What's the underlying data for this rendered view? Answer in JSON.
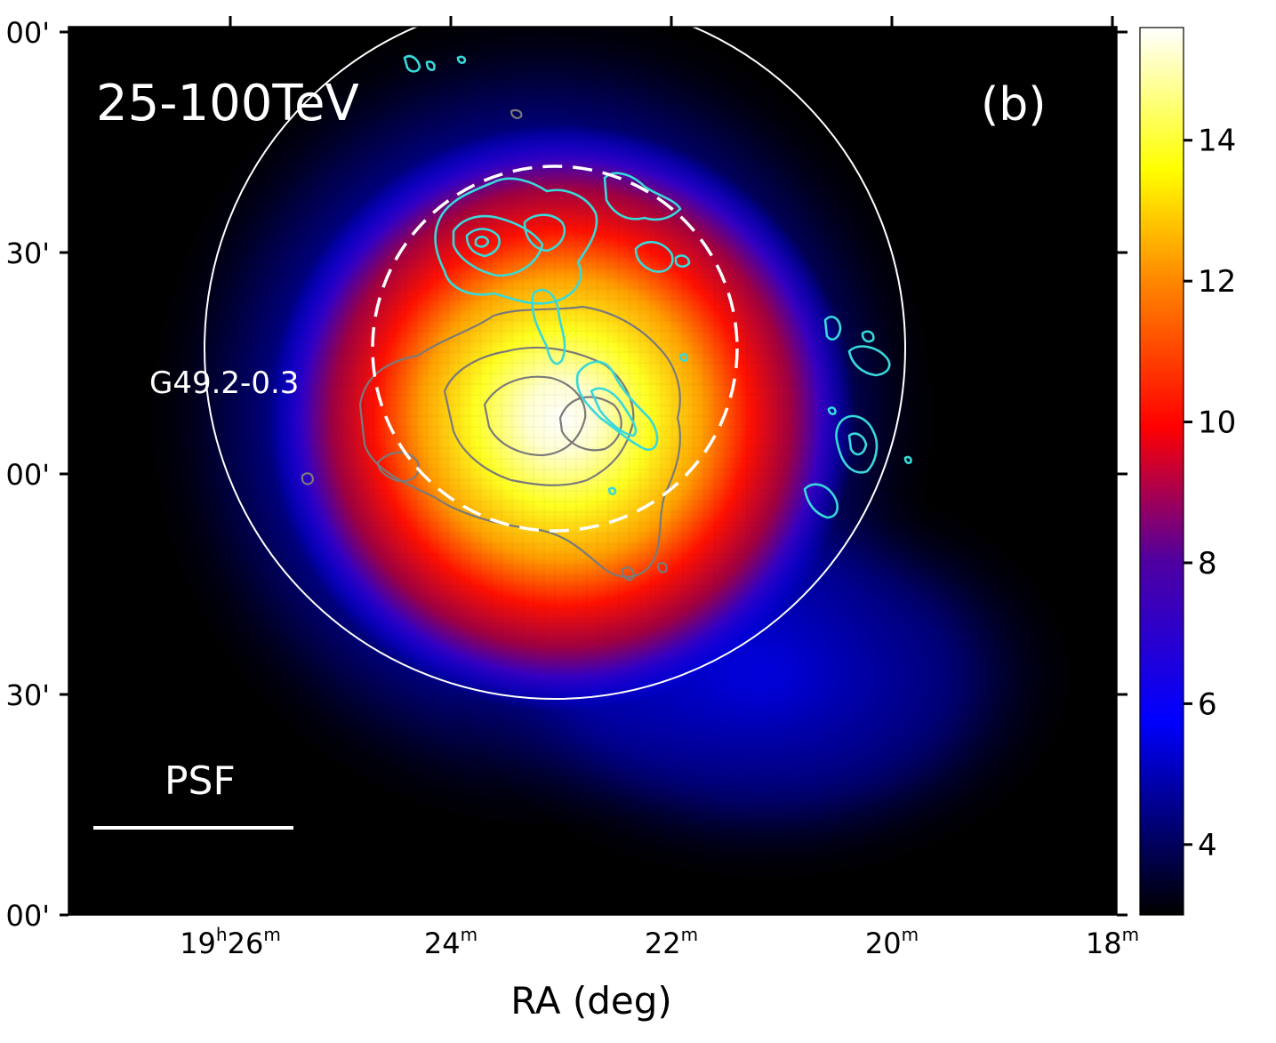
{
  "chart_data": {
    "type": "heatmap",
    "title": "",
    "xlabel": "RA (deg)",
    "ylabel": "",
    "x_ticks": [
      {
        "h": "19",
        "m": "26"
      },
      {
        "h": "",
        "m": "24"
      },
      {
        "h": "",
        "m": "22"
      },
      {
        "h": "",
        "m": "20"
      },
      {
        "h": "",
        "m": "18"
      }
    ],
    "y_ticks": [
      "00'",
      "30'",
      "00'",
      "30'",
      "00'"
    ],
    "colorbar": {
      "ticks": [
        4,
        6,
        8,
        10,
        12,
        14
      ],
      "range": [
        3.0,
        15.6
      ],
      "colormap": [
        "#000000",
        "#0000ff",
        "#ff0000",
        "#ffff00",
        "#ffffff"
      ]
    },
    "annotations": {
      "energy_band": "25-100TeV",
      "panel": "(b)",
      "source_label": "G49.2-0.3",
      "psf_label": "PSF"
    },
    "sources": [
      {
        "name": "peak",
        "ra_min": 23.0,
        "value": 15.5
      },
      {
        "name": "south-east lobe",
        "ra_min": 21.5,
        "value": 5.5
      }
    ],
    "contours": {
      "cyan": "#38d9d9",
      "grey": "#7a7a7a"
    },
    "grid": false
  }
}
